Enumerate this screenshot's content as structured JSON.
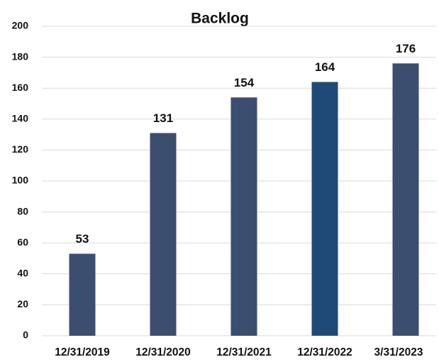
{
  "chart_data": {
    "type": "bar",
    "title": "Backlog",
    "categories": [
      "12/31/2019",
      "12/31/2020",
      "12/31/2021",
      "12/31/2022",
      "3/31/2023"
    ],
    "values": [
      53,
      131,
      154,
      164,
      176
    ],
    "colors": [
      "#3b4e6f",
      "#3b4e6f",
      "#3b4e6f",
      "#1f4a78",
      "#3b4e6f"
    ],
    "ylim": [
      0,
      200
    ],
    "yticks": [
      0,
      20,
      40,
      60,
      80,
      100,
      120,
      140,
      160,
      180,
      200
    ],
    "grid": true
  }
}
